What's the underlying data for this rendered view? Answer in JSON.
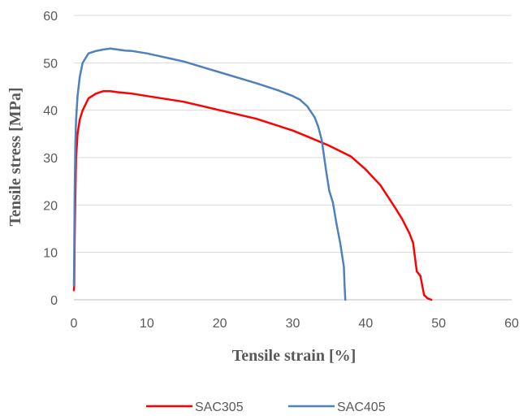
{
  "chart_data": {
    "type": "line",
    "title": "",
    "xlabel": "Tensile strain [%]",
    "ylabel": "Tensile stress [MPa]",
    "xlim": [
      0,
      60
    ],
    "ylim": [
      0,
      60
    ],
    "xticks": [
      0,
      10,
      20,
      30,
      40,
      50,
      60
    ],
    "yticks": [
      0,
      10,
      20,
      30,
      40,
      50,
      60
    ],
    "grid": "horizontal",
    "legend_position": "bottom",
    "series": [
      {
        "name": "SAC305",
        "color": "#ff0000",
        "x": [
          0,
          0.05,
          0.1,
          0.2,
          0.3,
          0.5,
          0.8,
          1.2,
          2,
          3,
          4,
          5,
          6,
          8,
          10,
          15,
          20,
          25,
          30,
          33,
          35,
          38,
          40,
          42,
          44,
          45,
          46,
          46.5,
          47,
          47.5,
          48,
          48.5,
          49
        ],
        "y": [
          2,
          3,
          12,
          22,
          30,
          35,
          38,
          40,
          42.5,
          43.5,
          44,
          44,
          43.8,
          43.5,
          43,
          41.8,
          40,
          38.2,
          35.7,
          33.8,
          32.5,
          30.2,
          27.5,
          24.2,
          19.5,
          17,
          14,
          12,
          6,
          5,
          1,
          0.3,
          0
        ]
      },
      {
        "name": "SAC405",
        "color": "#4f81bd",
        "x": [
          0,
          0.05,
          0.1,
          0.2,
          0.3,
          0.5,
          0.8,
          1.2,
          1.6,
          2,
          3,
          4,
          5,
          6,
          7,
          8,
          10,
          15,
          20,
          25,
          28,
          30,
          31,
          32,
          33,
          33.5,
          34,
          34.5,
          35,
          35.5,
          36,
          36.5,
          37,
          37.1,
          37.2
        ],
        "y": [
          3,
          10,
          22,
          33,
          38,
          43,
          47,
          50,
          51,
          52,
          52.5,
          52.8,
          53,
          52.8,
          52.6,
          52.5,
          52,
          50.3,
          48,
          45.7,
          44.2,
          43,
          42.2,
          40.8,
          38.5,
          36.5,
          33.5,
          28,
          23,
          20.5,
          16,
          12,
          7,
          3,
          0
        ]
      }
    ]
  }
}
